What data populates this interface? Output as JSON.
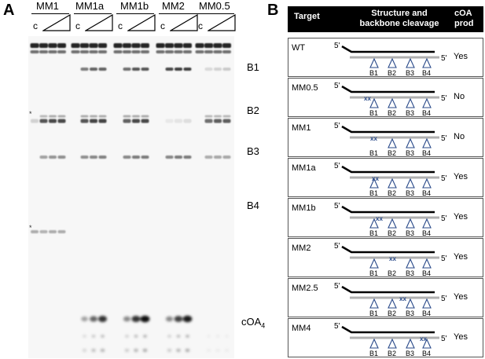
{
  "panel_a": {
    "letter": "A",
    "groups": [
      "MM1",
      "MM1a",
      "MM1b",
      "MM2",
      "MM0.5"
    ],
    "control_label": "c",
    "band_labels": [
      "B1",
      "B2",
      "B3",
      "B4",
      "cOA",
      "4"
    ],
    "star": "*"
  },
  "panel_b": {
    "letter": "B",
    "headers": {
      "target": "Target",
      "structure_line1": "Structure and",
      "structure_line2": "backbone cleavage",
      "prod_line1": "cOA",
      "prod_line2": "prod"
    },
    "prime": "5'",
    "site_labels": [
      "B1",
      "B2",
      "B3",
      "B4"
    ],
    "mismatch_mark": "xx",
    "rows": [
      {
        "target": "WT",
        "prod": "Yes"
      },
      {
        "target": "MM0.5",
        "prod": "No"
      },
      {
        "target": "MM1",
        "prod": "No"
      },
      {
        "target": "MM1a",
        "prod": "Yes"
      },
      {
        "target": "MM1b",
        "prod": "Yes"
      },
      {
        "target": "MM2",
        "prod": "Yes"
      },
      {
        "target": "MM2.5",
        "prod": "Yes"
      },
      {
        "target": "MM4",
        "prod": "Yes"
      }
    ],
    "colors": {
      "accent": "#2a4a8a",
      "strand_top": "#000000",
      "strand_bottom": "#b0b0b0"
    }
  }
}
